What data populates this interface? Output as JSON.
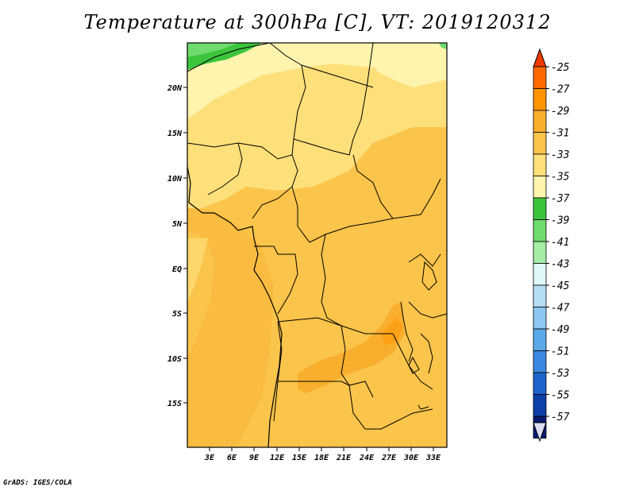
{
  "title": "Temperature at 300hPa [C], VT: 2019120312",
  "credit": "GrADS: IGES/COLA",
  "map": {
    "x_ticks": [
      "3E",
      "6E",
      "9E",
      "12E",
      "15E",
      "18E",
      "21E",
      "24E",
      "27E",
      "30E",
      "33E"
    ],
    "y_ticks": [
      "20N",
      "15N",
      "10N",
      "5N",
      "EQ",
      "5S",
      "10S",
      "15S"
    ]
  },
  "colorbar": {
    "labels": [
      "-25",
      "-27",
      "-29",
      "-31",
      "-33",
      "-35",
      "-37",
      "-39",
      "-41",
      "-43",
      "-45",
      "-47",
      "-49",
      "-51",
      "-53",
      "-55",
      "-57"
    ],
    "colors": [
      "#ff6a00",
      "#ff9400",
      "#f9ae2d",
      "#fbc44a",
      "#fde07a",
      "#fef4ae",
      "#3dc43d",
      "#6fdc6f",
      "#a5eca5",
      "#e2f7f7",
      "#b8def5",
      "#8ec8f2",
      "#5aa8e8",
      "#3b88e0",
      "#1e64cc",
      "#0e3fa8",
      "#081a6e"
    ],
    "top_color": "#ee3a00",
    "bottom_color": "#dcdcf4"
  }
}
